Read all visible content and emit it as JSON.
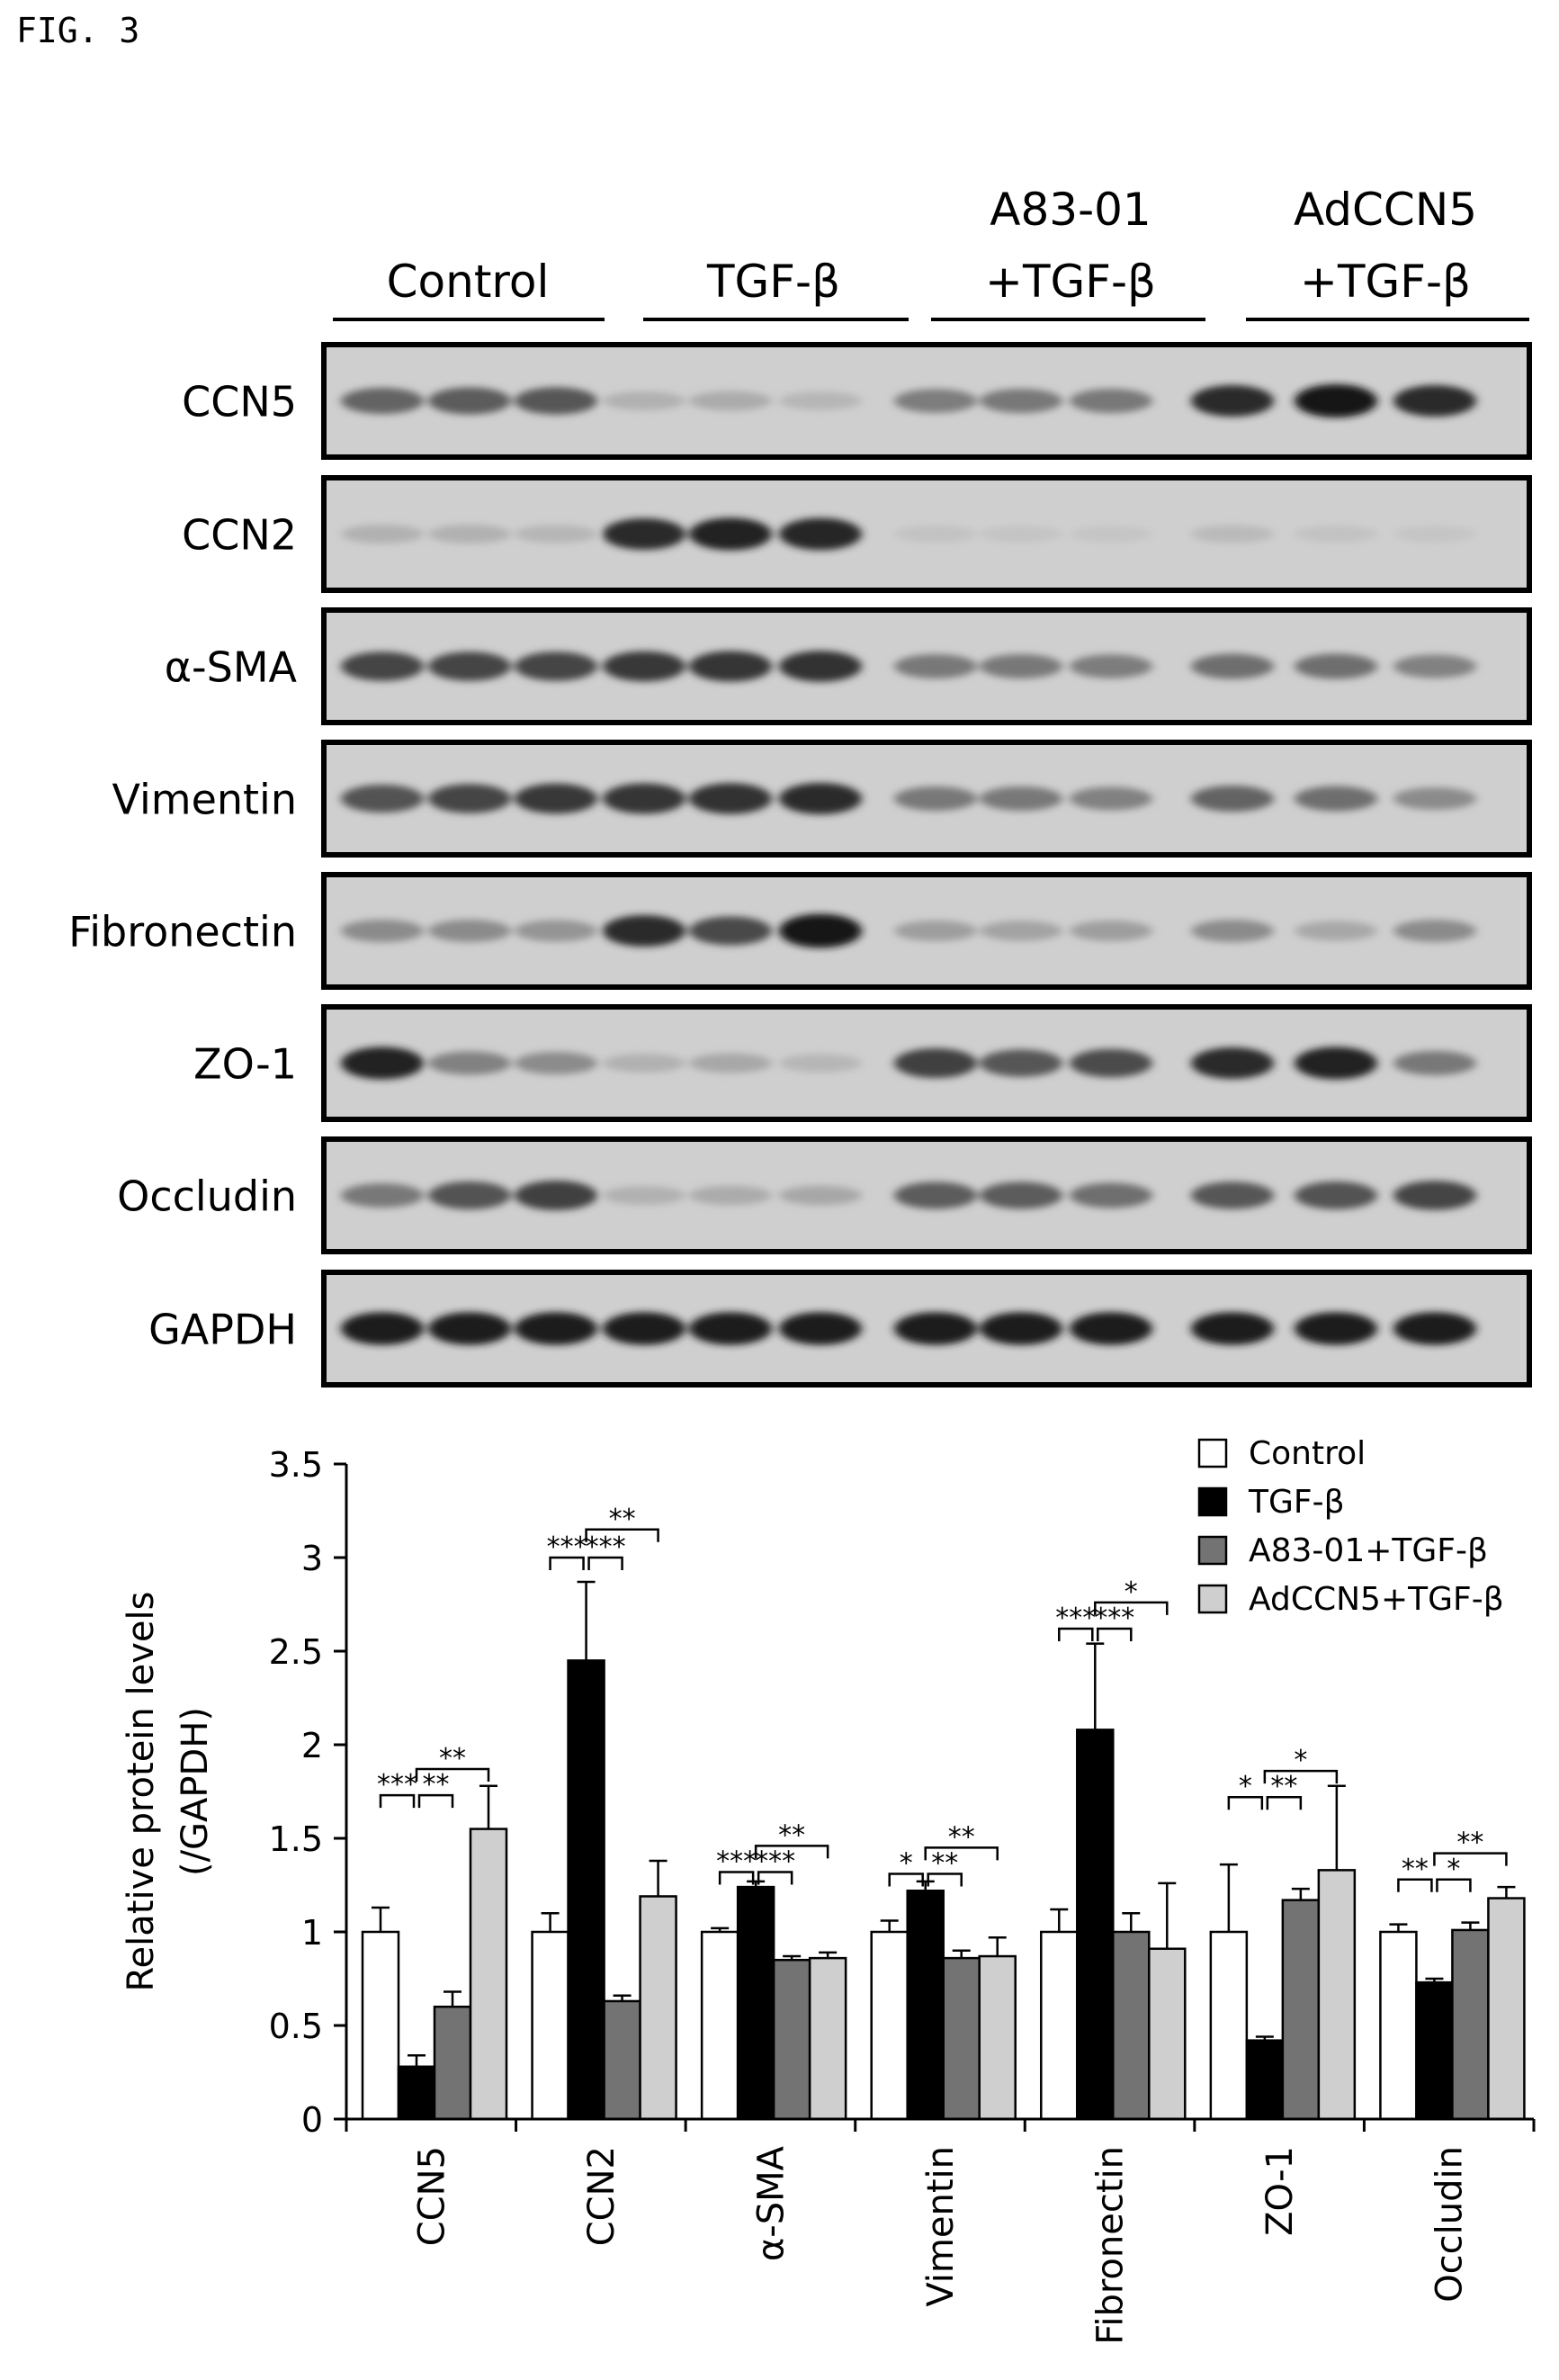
{
  "figure_label": "FIG. 3",
  "blot": {
    "groups": [
      {
        "lines": [
          "Control"
        ]
      },
      {
        "lines": [
          "TGF-β"
        ]
      },
      {
        "lines": [
          "A83-01",
          "+TGF-β"
        ]
      },
      {
        "lines": [
          "AdCCN5",
          "+TGF-β"
        ]
      }
    ],
    "rows": [
      "CCN5",
      "CCN2",
      "α-SMA",
      "Vimentin",
      "Fibronectin",
      "ZO-1",
      "Occludin",
      "GAPDH"
    ],
    "intensity": [
      [
        0.55,
        0.6,
        0.62,
        0.15,
        0.18,
        0.12,
        0.42,
        0.45,
        0.45,
        0.85,
        0.95,
        0.85
      ],
      [
        0.15,
        0.15,
        0.12,
        0.85,
        0.9,
        0.88,
        0.06,
        0.05,
        0.04,
        0.1,
        0.06,
        0.04
      ],
      [
        0.72,
        0.72,
        0.72,
        0.78,
        0.8,
        0.82,
        0.45,
        0.45,
        0.42,
        0.5,
        0.5,
        0.4
      ],
      [
        0.65,
        0.72,
        0.78,
        0.8,
        0.82,
        0.85,
        0.45,
        0.45,
        0.4,
        0.55,
        0.5,
        0.35
      ],
      [
        0.35,
        0.35,
        0.3,
        0.85,
        0.7,
        0.98,
        0.25,
        0.22,
        0.25,
        0.35,
        0.2,
        0.35
      ],
      [
        0.9,
        0.4,
        0.35,
        0.15,
        0.2,
        0.12,
        0.75,
        0.62,
        0.68,
        0.85,
        0.9,
        0.45
      ],
      [
        0.45,
        0.65,
        0.75,
        0.15,
        0.18,
        0.2,
        0.6,
        0.6,
        0.5,
        0.62,
        0.65,
        0.72
      ],
      [
        0.92,
        0.92,
        0.92,
        0.92,
        0.92,
        0.92,
        0.92,
        0.92,
        0.92,
        0.92,
        0.92,
        0.92
      ]
    ]
  },
  "chart_data": {
    "type": "bar",
    "title": "",
    "ylabel_lines": [
      "Relative protein levels",
      "(/GAPDH)"
    ],
    "xlabel": "",
    "ylim": [
      0,
      3.5
    ],
    "yticks": [
      0,
      0.5,
      1,
      1.5,
      2,
      2.5,
      3,
      3.5
    ],
    "ytick_labels": [
      "0",
      "0.5",
      "1",
      "1.5",
      "2",
      "2.5",
      "3",
      "3.5"
    ],
    "categories": [
      "CCN5",
      "CCN2",
      "α-SMA",
      "Vimentin",
      "Fibronectin",
      "ZO-1",
      "Occludin"
    ],
    "series": [
      {
        "name": "Control",
        "color": "#ffffff",
        "values": [
          1.0,
          1.0,
          1.0,
          1.0,
          1.0,
          1.0,
          1.0
        ],
        "errors": [
          0.13,
          0.1,
          0.02,
          0.06,
          0.12,
          0.36,
          0.04
        ]
      },
      {
        "name": "TGF-β",
        "color": "#000000",
        "values": [
          0.28,
          2.45,
          1.24,
          1.22,
          2.08,
          0.42,
          0.73
        ],
        "errors": [
          0.06,
          0.42,
          0.03,
          0.05,
          0.46,
          0.02,
          0.02
        ]
      },
      {
        "name": "A83-01+TGF-β",
        "color": "#737373",
        "values": [
          0.6,
          0.63,
          0.85,
          0.86,
          1.0,
          1.17,
          1.01
        ],
        "errors": [
          0.08,
          0.03,
          0.02,
          0.04,
          0.1,
          0.06,
          0.04
        ]
      },
      {
        "name": "AdCCN5+TGF-β",
        "color": "#cfcfcf",
        "values": [
          1.55,
          1.19,
          0.86,
          0.87,
          0.91,
          1.33,
          1.18
        ],
        "errors": [
          0.23,
          0.19,
          0.03,
          0.1,
          0.35,
          0.45,
          0.06
        ]
      }
    ],
    "significance": [
      {
        "category": 0,
        "labels": [
          "***",
          "**",
          "**"
        ],
        "heights": [
          1.73,
          1.73,
          1.87
        ]
      },
      {
        "category": 1,
        "labels": [
          "***",
          "***",
          "**"
        ],
        "heights": [
          3.0,
          3.0,
          3.15
        ]
      },
      {
        "category": 2,
        "labels": [
          "***",
          "***",
          "**"
        ],
        "heights": [
          1.32,
          1.32,
          1.46
        ]
      },
      {
        "category": 3,
        "labels": [
          "*",
          "**",
          "**"
        ],
        "heights": [
          1.31,
          1.31,
          1.45
        ]
      },
      {
        "category": 4,
        "labels": [
          "***",
          "***",
          "*"
        ],
        "heights": [
          2.62,
          2.62,
          2.76
        ]
      },
      {
        "category": 5,
        "labels": [
          "*",
          "**",
          "*"
        ],
        "heights": [
          1.72,
          1.72,
          1.86
        ]
      },
      {
        "category": 6,
        "labels": [
          "**",
          "*",
          "**"
        ],
        "heights": [
          1.28,
          1.28,
          1.42
        ]
      }
    ],
    "legend_position": "top-right"
  }
}
